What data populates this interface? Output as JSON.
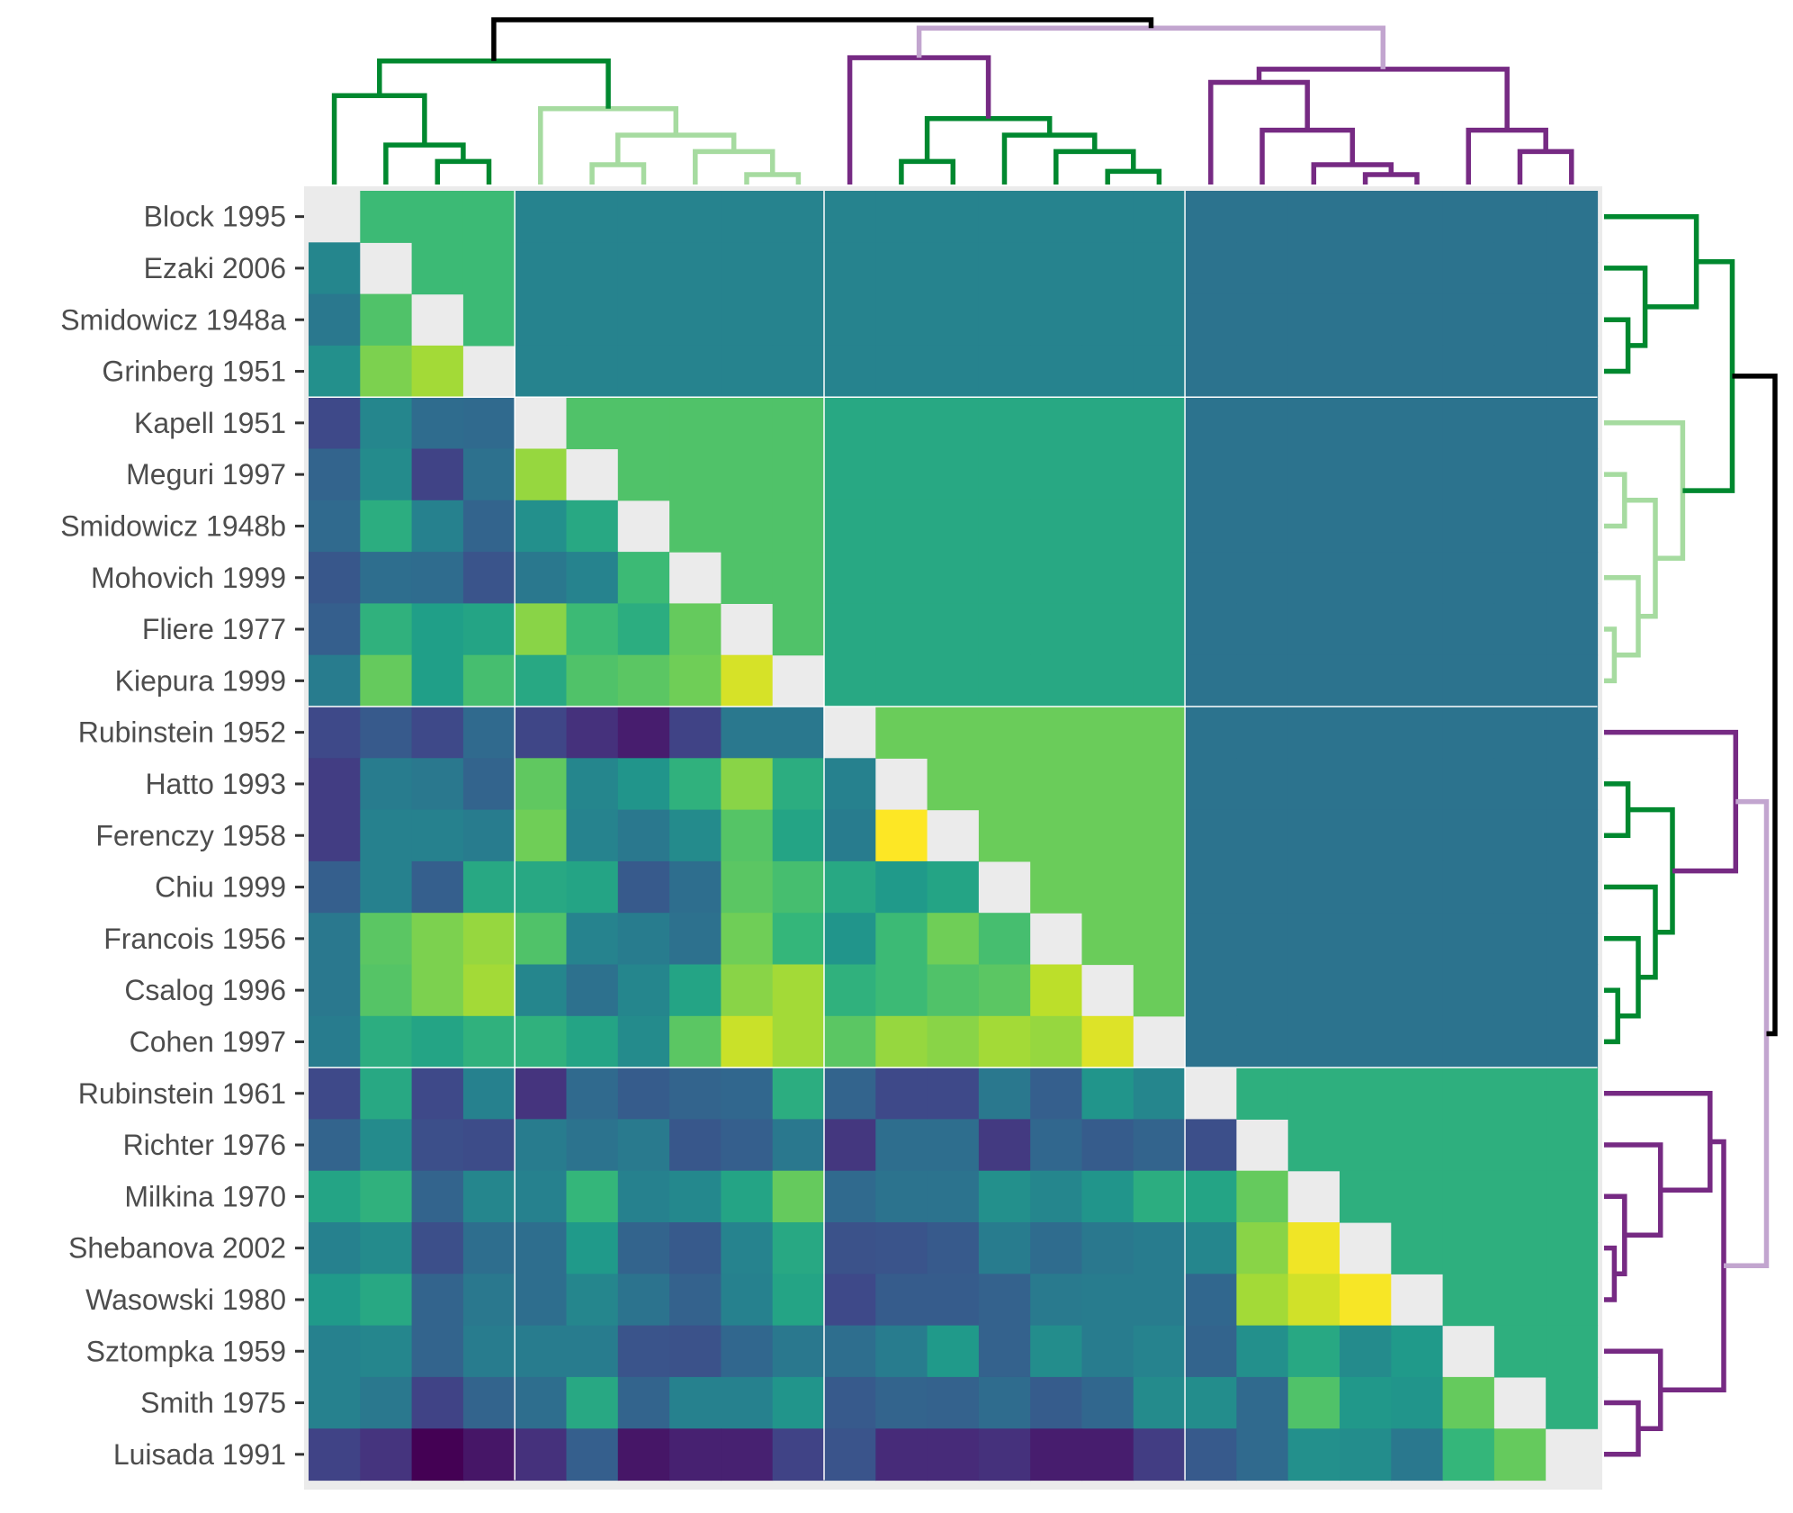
{
  "chart_data": {
    "type": "heatmap",
    "title": "",
    "xlabel": "",
    "ylabel": "",
    "rows": [
      "Block 1995",
      "Ezaki 2006",
      "Smidowicz 1948a",
      "Grinberg 1951",
      "Kapell 1951",
      "Meguri 1997",
      "Smidowicz 1948b",
      "Mohovich 1999",
      "Fliere 1977",
      "Kiepura 1999",
      "Rubinstein 1952",
      "Hatto 1993",
      "Ferenczy 1958",
      "Chiu 1999",
      "Francois 1956",
      "Csalog 1996",
      "Cohen 1997",
      "Rubinstein 1961",
      "Richter 1976",
      "Milkina 1970",
      "Shebanova 2002",
      "Wasowski 1980",
      "Sztompka 1959",
      "Smith 1975",
      "Luisada 1991"
    ],
    "clusters": [
      {
        "start": 0,
        "end": 3,
        "color": "#00882f"
      },
      {
        "start": 4,
        "end": 9,
        "color": "#a6dba0"
      },
      {
        "start": 10,
        "end": 16,
        "color": "#762a83"
      },
      {
        "start": 17,
        "end": 24,
        "color": "#c2a5cf"
      }
    ],
    "block_means": [
      [
        0.68,
        0.45,
        0.45,
        0.38
      ],
      [
        0.45,
        0.72,
        0.6,
        0.38
      ],
      [
        0.45,
        0.6,
        0.77,
        0.38
      ],
      [
        0.38,
        0.38,
        0.38,
        0.63
      ]
    ],
    "lower_triangle_values": [
      [
        0.46
      ],
      [
        0.4,
        0.72
      ],
      [
        0.5,
        0.8,
        0.86
      ],
      [
        0.22,
        0.46,
        0.35,
        0.34
      ],
      [
        0.32,
        0.48,
        0.2,
        0.37,
        0.84
      ],
      [
        0.34,
        0.62,
        0.44,
        0.32,
        0.5,
        0.6
      ],
      [
        0.27,
        0.36,
        0.35,
        0.26,
        0.4,
        0.45,
        0.68
      ],
      [
        0.3,
        0.64,
        0.56,
        0.58,
        0.82,
        0.68,
        0.62,
        0.76
      ],
      [
        0.42,
        0.76,
        0.56,
        0.7,
        0.6,
        0.72,
        0.74,
        0.78,
        0.94
      ],
      [
        0.22,
        0.28,
        0.22,
        0.34,
        0.21,
        0.14,
        0.08,
        0.2,
        0.4,
        0.4
      ],
      [
        0.18,
        0.42,
        0.4,
        0.32,
        0.75,
        0.46,
        0.52,
        0.64,
        0.82,
        0.62,
        0.44
      ],
      [
        0.18,
        0.44,
        0.44,
        0.42,
        0.78,
        0.45,
        0.4,
        0.48,
        0.73,
        0.58,
        0.42,
        1.0
      ],
      [
        0.3,
        0.44,
        0.3,
        0.6,
        0.6,
        0.58,
        0.28,
        0.36,
        0.74,
        0.7,
        0.6,
        0.54,
        0.58
      ],
      [
        0.4,
        0.74,
        0.8,
        0.84,
        0.72,
        0.45,
        0.42,
        0.37,
        0.78,
        0.66,
        0.52,
        0.68,
        0.78,
        0.7
      ],
      [
        0.4,
        0.73,
        0.8,
        0.86,
        0.46,
        0.37,
        0.46,
        0.58,
        0.82,
        0.86,
        0.64,
        0.68,
        0.72,
        0.74,
        0.9
      ],
      [
        0.42,
        0.62,
        0.58,
        0.64,
        0.64,
        0.58,
        0.48,
        0.74,
        0.92,
        0.86,
        0.74,
        0.84,
        0.82,
        0.86,
        0.84,
        0.95
      ],
      [
        0.22,
        0.6,
        0.22,
        0.44,
        0.15,
        0.34,
        0.29,
        0.32,
        0.33,
        0.62,
        0.32,
        0.22,
        0.22,
        0.4,
        0.3,
        0.52,
        0.46
      ],
      [
        0.32,
        0.48,
        0.24,
        0.23,
        0.42,
        0.38,
        0.41,
        0.27,
        0.3,
        0.4,
        0.16,
        0.36,
        0.36,
        0.17,
        0.33,
        0.29,
        0.32,
        0.24
      ],
      [
        0.58,
        0.64,
        0.32,
        0.46,
        0.44,
        0.66,
        0.44,
        0.47,
        0.58,
        0.76,
        0.34,
        0.38,
        0.38,
        0.5,
        0.46,
        0.52,
        0.62,
        0.58,
        0.76
      ],
      [
        0.44,
        0.48,
        0.24,
        0.36,
        0.36,
        0.54,
        0.32,
        0.28,
        0.45,
        0.6,
        0.25,
        0.26,
        0.28,
        0.42,
        0.35,
        0.4,
        0.42,
        0.46,
        0.82,
        0.98
      ],
      [
        0.54,
        0.6,
        0.32,
        0.4,
        0.36,
        0.46,
        0.38,
        0.31,
        0.44,
        0.58,
        0.22,
        0.29,
        0.29,
        0.31,
        0.41,
        0.42,
        0.42,
        0.33,
        0.86,
        0.93,
        0.99
      ],
      [
        0.44,
        0.46,
        0.32,
        0.42,
        0.42,
        0.42,
        0.26,
        0.25,
        0.33,
        0.4,
        0.36,
        0.42,
        0.54,
        0.31,
        0.49,
        0.42,
        0.45,
        0.32,
        0.5,
        0.6,
        0.48,
        0.54
      ],
      [
        0.44,
        0.4,
        0.2,
        0.32,
        0.36,
        0.6,
        0.32,
        0.44,
        0.44,
        0.52,
        0.28,
        0.32,
        0.31,
        0.35,
        0.29,
        0.33,
        0.48,
        0.49,
        0.34,
        0.72,
        0.53,
        0.52,
        0.76
      ],
      [
        0.2,
        0.15,
        0.0,
        0.06,
        0.14,
        0.3,
        0.06,
        0.09,
        0.09,
        0.2,
        0.26,
        0.12,
        0.12,
        0.14,
        0.08,
        0.08,
        0.18,
        0.28,
        0.34,
        0.5,
        0.49,
        0.4,
        0.66,
        0.76
      ]
    ],
    "colormap": "viridis",
    "diagonal_color": "#ebebeb",
    "dendrogram": {
      "leaves": [
        "Block 1995",
        "Ezaki 2006",
        "Smidowicz 1948a",
        "Grinberg 1951",
        "Kapell 1951",
        "Meguri 1997",
        "Smidowicz 1948b",
        "Mohovich 1999",
        "Fliere 1977",
        "Kiepura 1999",
        "Rubinstein 1952",
        "Hatto 1993",
        "Ferenczy 1958",
        "Chiu 1999",
        "Francois 1956",
        "Csalog 1996",
        "Cohen 1997",
        "Rubinstein 1961",
        "Richter 1976",
        "Milkina 1970",
        "Shebanova 2002",
        "Wasowski 1980",
        "Sztompka 1959",
        "Smith 1975",
        "Luisada 1991"
      ],
      "root_color": "#000000",
      "merges": [
        [
          2,
          3,
          0.14,
          0
        ],
        [
          1,
          25,
          0.24,
          0
        ],
        [
          0,
          26,
          0.54,
          0
        ],
        [
          8,
          9,
          0.06,
          1
        ],
        [
          7,
          28,
          0.2,
          1
        ],
        [
          5,
          6,
          0.12,
          1
        ],
        [
          30,
          29,
          0.3,
          1
        ],
        [
          4,
          31,
          0.46,
          1
        ],
        [
          27,
          32,
          0.75,
          2
        ],
        [
          15,
          16,
          0.08,
          2
        ],
        [
          14,
          34,
          0.2,
          2
        ],
        [
          13,
          35,
          0.3,
          2
        ],
        [
          11,
          12,
          0.14,
          2
        ],
        [
          37,
          36,
          0.4,
          2
        ],
        [
          10,
          38,
          0.77,
          3
        ],
        [
          23,
          24,
          0.2,
          3
        ],
        [
          22,
          40,
          0.33,
          3
        ],
        [
          20,
          21,
          0.06,
          3
        ],
        [
          19,
          42,
          0.12,
          3
        ],
        [
          18,
          43,
          0.33,
          3
        ],
        [
          17,
          44,
          0.62,
          3
        ],
        [
          45,
          41,
          0.7,
          3
        ],
        [
          39,
          46,
          0.95,
          4
        ],
        [
          33,
          47,
          1.0,
          5
        ]
      ],
      "branch_colors": [
        "#00882f",
        "#a6dba0",
        "#00882f",
        "#762a83",
        "#c2a5cf",
        "#000000"
      ]
    }
  }
}
